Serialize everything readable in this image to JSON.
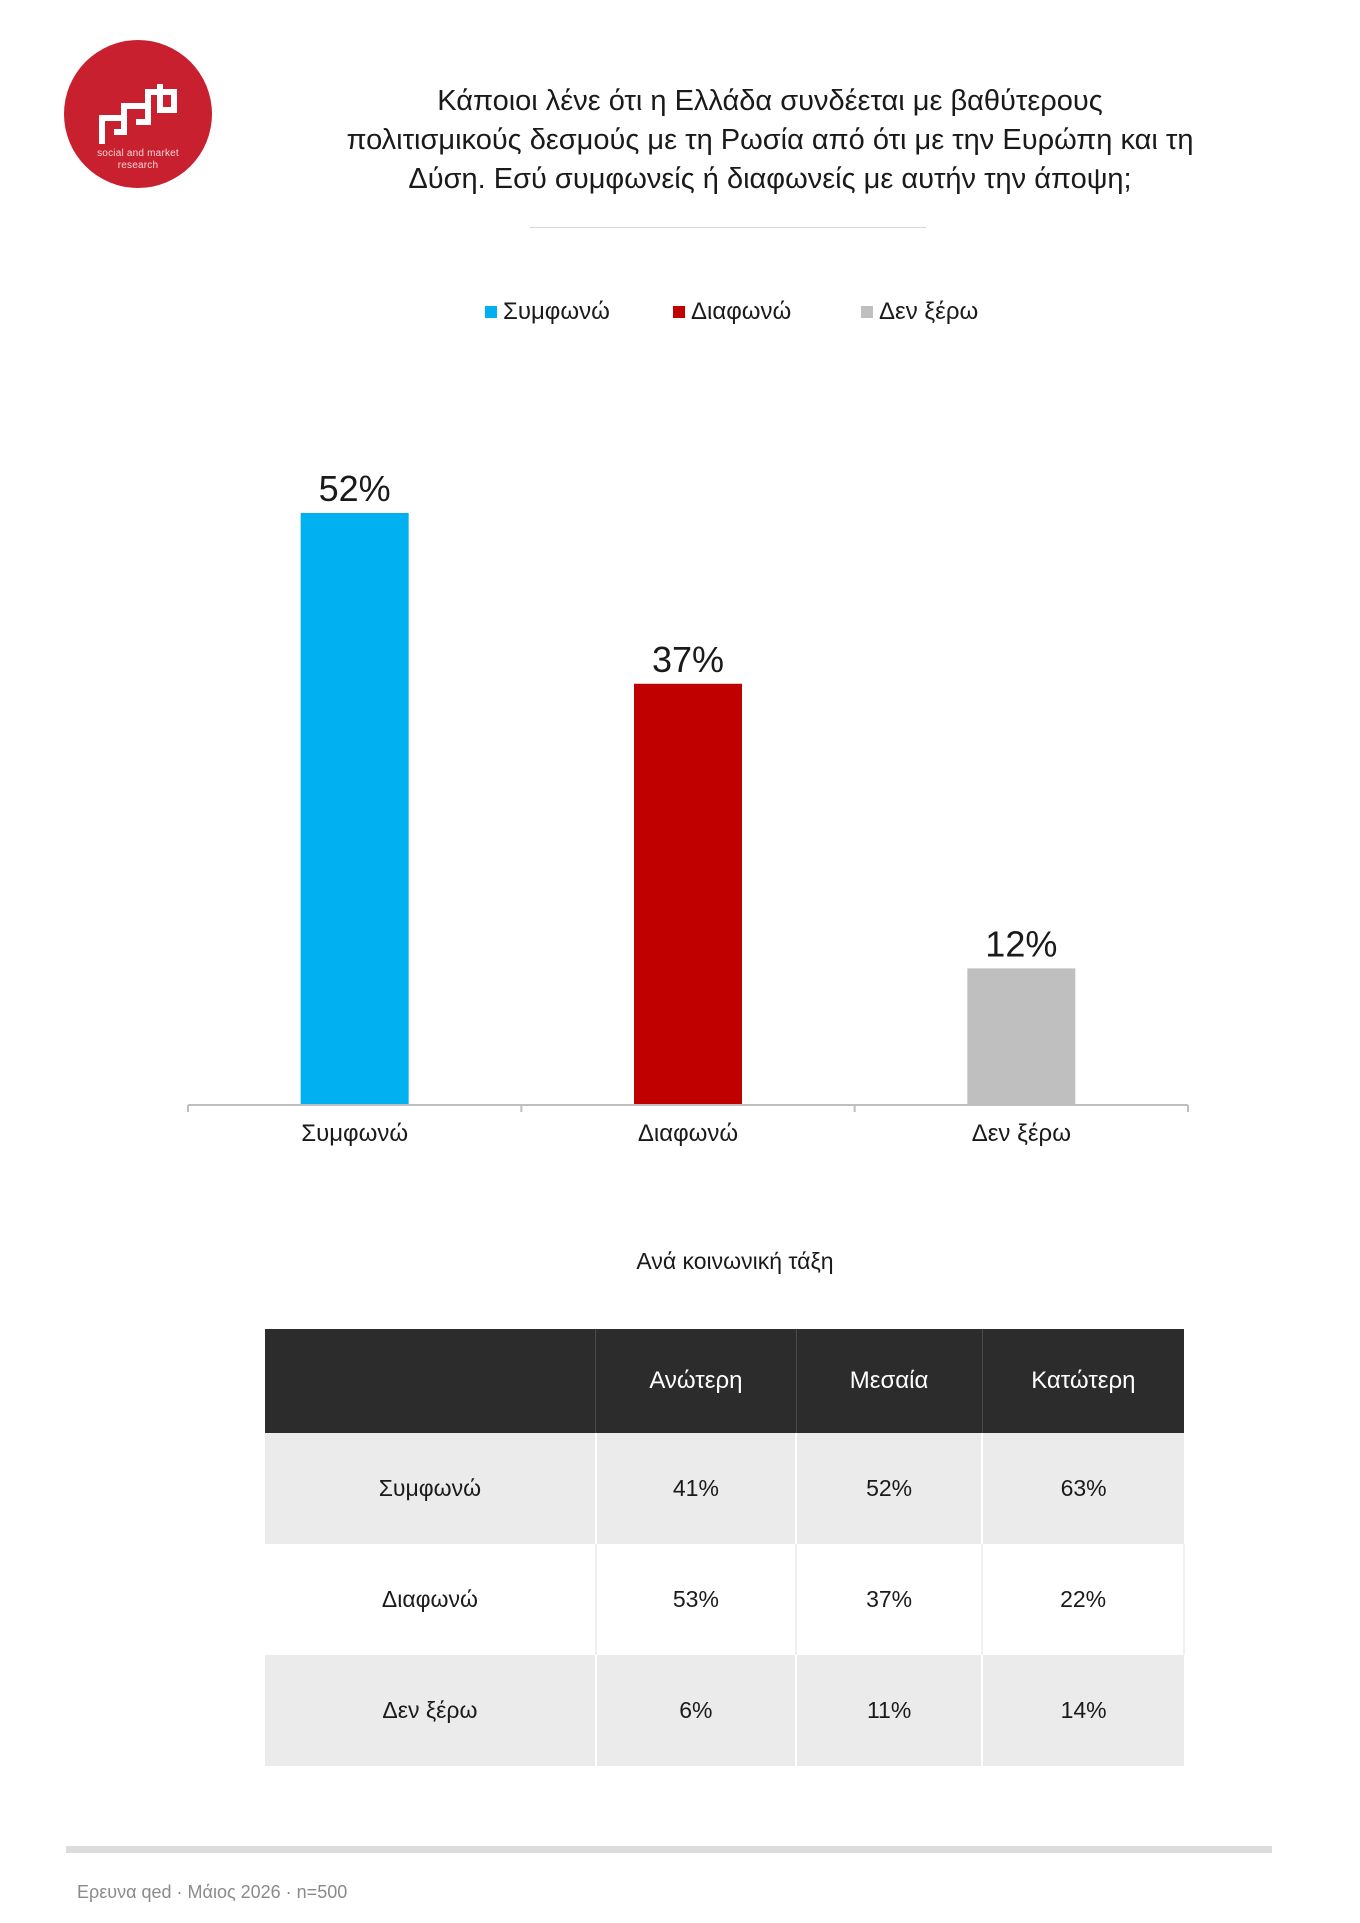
{
  "logo": {
    "line1": "social and market",
    "line2": "research",
    "color": "#c8202e"
  },
  "title_lines": [
    "Κάποιοι λένε ότι η Ελλάδα συνδέεται με βαθύτερους",
    "πολιτισμικούς δεσμούς με τη Ρωσία από ότι με την Ευρώπη και τη",
    "Δύση. Εσύ συμφωνείς ή διαφωνείς με αυτήν την άποψη;"
  ],
  "legend": [
    {
      "label": "Συμφωνώ",
      "color": "#00b0f0"
    },
    {
      "label": "Διαφωνώ",
      "color": "#c00000"
    },
    {
      "label": "Δεν ξέρω",
      "color": "#bfbfbf"
    }
  ],
  "chart_data": {
    "type": "bar",
    "categories": [
      "Συμφωνώ",
      "Διαφωνώ",
      "Δεν ξέρω"
    ],
    "values": [
      52,
      37,
      12
    ],
    "value_labels": [
      "52%",
      "37%",
      "12%"
    ],
    "colors": [
      "#00b0f0",
      "#c00000",
      "#bfbfbf"
    ],
    "ylim": [
      0,
      52
    ],
    "grid": false,
    "legend_position": "top"
  },
  "table": {
    "subtitle": "Ανά κοινωνική τάξη",
    "columns": [
      "",
      "Ανώτερη",
      "Μεσαία",
      "Κατώτερη"
    ],
    "rows": [
      {
        "label": "Συμφωνώ",
        "values": [
          "41%",
          "52%",
          "63%"
        ]
      },
      {
        "label": "Διαφωνώ",
        "values": [
          "53%",
          "37%",
          "22%"
        ]
      },
      {
        "label": "Δεν ξέρω",
        "values": [
          "6%",
          "11%",
          "14%"
        ]
      }
    ]
  },
  "footer": "Ερευνα qed · Μάιος 2026 · n=500"
}
